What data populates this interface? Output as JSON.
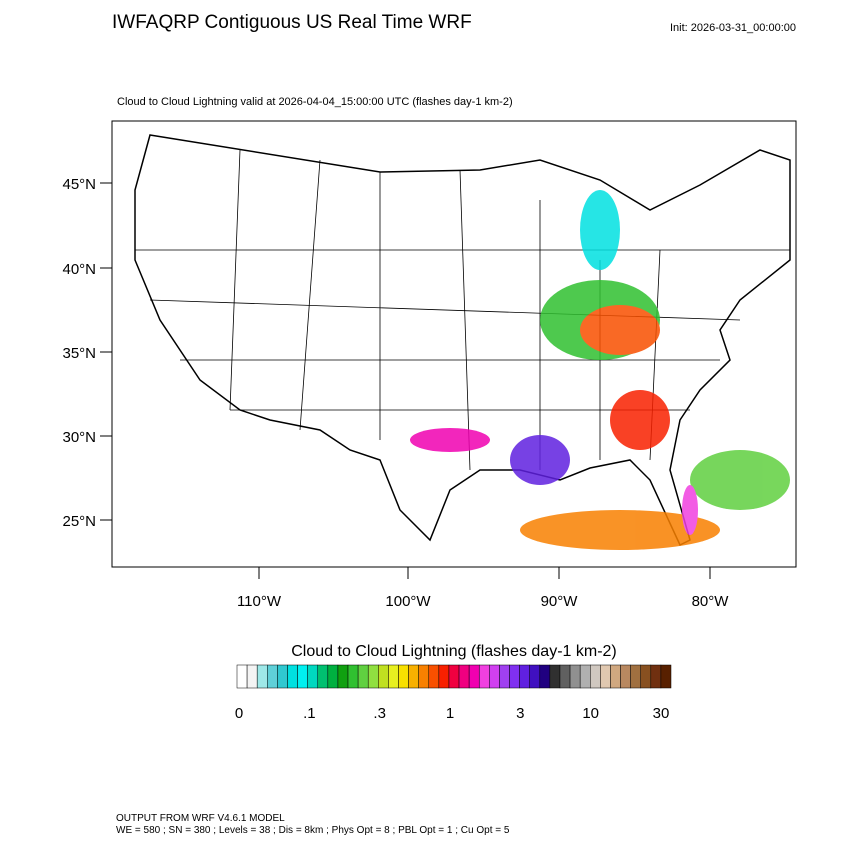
{
  "header": {
    "title": "IWFAQRP Contiguous US Real Time WRF",
    "init": "Init: 2026-03-31_00:00:00"
  },
  "map": {
    "subtitle": "Cloud to Cloud Lightning valid at 2026-04-04_15:00:00 UTC   (flashes day-1 km-2)",
    "lat_labels": [
      "45°N",
      "40°N",
      "35°N",
      "30°N",
      "25°N"
    ],
    "lon_labels": [
      "110°W",
      "100°W",
      "90°W",
      "80°W"
    ]
  },
  "colorbar": {
    "title": "Cloud to Cloud Lightning  (flashes day-1 km-2)",
    "labels": [
      "0",
      ".1",
      ".3",
      "1",
      "3",
      "10",
      "30"
    ],
    "colors": [
      "#ffffff",
      "#f4f4f4",
      "#9ee8e8",
      "#5fd0d8",
      "#30c8d0",
      "#00e0e0",
      "#00f0f0",
      "#00d8c0",
      "#00c070",
      "#00b040",
      "#10a010",
      "#30c030",
      "#60d040",
      "#90e040",
      "#c0e020",
      "#e8f020",
      "#f8e000",
      "#f8b000",
      "#f88000",
      "#f85000",
      "#f82000",
      "#f00040",
      "#f00080",
      "#f000b0",
      "#f040e0",
      "#d040f0",
      "#a040f0",
      "#8030f0",
      "#6020e0",
      "#4010c0",
      "#200080",
      "#303030",
      "#606060",
      "#909090",
      "#b0b0b0",
      "#d0c8c0",
      "#e0c8b0",
      "#d0a880",
      "#b88860",
      "#a07040",
      "#885020",
      "#703010",
      "#582000"
    ]
  },
  "footer": {
    "line1": "OUTPUT FROM WRF V4.6.1 MODEL",
    "line2": "WE = 580 ; SN = 380 ; Levels = 38 ; Dis = 8km ; Phys Opt = 8 ; PBL Opt = 1 ; Cu Opt = 5"
  }
}
